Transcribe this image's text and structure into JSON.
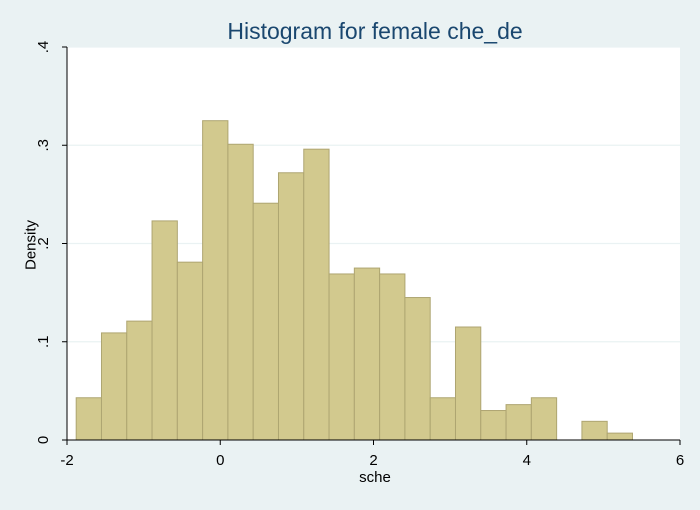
{
  "chart_data": {
    "type": "bar",
    "title": "Histogram for female che_de",
    "xlabel": "sche",
    "ylabel": "Density",
    "xlim": [
      -2,
      6
    ],
    "ylim": [
      0,
      0.4
    ],
    "xticks": [
      {
        "value": -2,
        "label": "-2"
      },
      {
        "value": 0,
        "label": "0"
      },
      {
        "value": 2,
        "label": "2"
      },
      {
        "value": 4,
        "label": "4"
      },
      {
        "value": 6,
        "label": "6"
      }
    ],
    "yticks": [
      {
        "value": 0,
        "label": "0"
      },
      {
        "value": 0.1,
        "label": ".1"
      },
      {
        "value": 0.2,
        "label": ".2"
      },
      {
        "value": 0.3,
        "label": ".3"
      },
      {
        "value": 0.4,
        "label": ".4"
      }
    ],
    "grid": true,
    "bins": [
      {
        "x0": -1.88,
        "x1": -1.55,
        "density": 0.043
      },
      {
        "x0": -1.55,
        "x1": -1.22,
        "density": 0.109
      },
      {
        "x0": -1.22,
        "x1": -0.89,
        "density": 0.121
      },
      {
        "x0": -0.89,
        "x1": -0.56,
        "density": 0.223
      },
      {
        "x0": -0.56,
        "x1": -0.23,
        "density": 0.181
      },
      {
        "x0": -0.23,
        "x1": 0.1,
        "density": 0.325
      },
      {
        "x0": 0.1,
        "x1": 0.43,
        "density": 0.301
      },
      {
        "x0": 0.43,
        "x1": 0.76,
        "density": 0.241
      },
      {
        "x0": 0.76,
        "x1": 1.09,
        "density": 0.272
      },
      {
        "x0": 1.09,
        "x1": 1.42,
        "density": 0.296
      },
      {
        "x0": 1.42,
        "x1": 1.75,
        "density": 0.169
      },
      {
        "x0": 1.75,
        "x1": 2.08,
        "density": 0.175
      },
      {
        "x0": 2.08,
        "x1": 2.41,
        "density": 0.169
      },
      {
        "x0": 2.41,
        "x1": 2.74,
        "density": 0.145
      },
      {
        "x0": 2.74,
        "x1": 3.07,
        "density": 0.043
      },
      {
        "x0": 3.07,
        "x1": 3.4,
        "density": 0.115
      },
      {
        "x0": 3.4,
        "x1": 3.73,
        "density": 0.03
      },
      {
        "x0": 3.73,
        "x1": 4.06,
        "density": 0.036
      },
      {
        "x0": 4.06,
        "x1": 4.39,
        "density": 0.043
      },
      {
        "x0": 4.39,
        "x1": 4.72,
        "density": 0.0
      },
      {
        "x0": 4.72,
        "x1": 5.05,
        "density": 0.019
      },
      {
        "x0": 5.05,
        "x1": 5.38,
        "density": 0.007
      }
    ],
    "colors": {
      "bar_fill": "#d2c98e",
      "bar_stroke": "#aea571",
      "background": "#eaf2f3",
      "plot_background": "#ffffff",
      "title": "#1a476f",
      "grid": "#eaf2f3"
    }
  }
}
